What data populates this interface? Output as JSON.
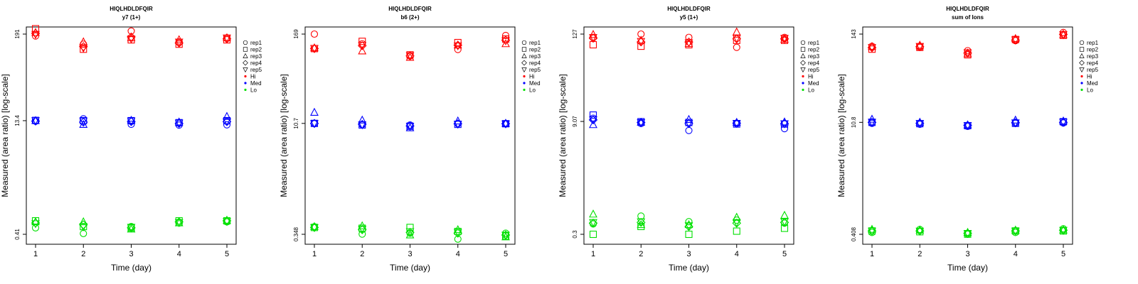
{
  "chart_data": [
    {
      "type": "scatter",
      "title": "HIQLHDLDFQIR",
      "subtitle": "y7 (1+)",
      "xlabel": "Time (day)",
      "ylabel": "Measured (area ratio) [log-scale]",
      "x_ticks": [
        "1",
        "2",
        "3",
        "4",
        "5"
      ],
      "y_ticks": [
        {
          "value": 0.41,
          "label": "0.41"
        },
        {
          "value": 13.4,
          "label": "13.4"
        },
        {
          "value": 191,
          "label": "191"
        }
      ],
      "log_y": true,
      "legend": [
        "rep1",
        "rep2",
        "rep3",
        "rep4",
        "rep5",
        "Hi",
        "Med",
        "Lo"
      ],
      "legend_position": "right",
      "grid": false,
      "points": {
        "Hi": {
          "rep1": [
            180,
            140,
            210,
            150,
            170
          ],
          "rep2": [
            225,
            120,
            160,
            140,
            160
          ],
          "rep3": [
            200,
            150,
            170,
            160,
            170
          ],
          "rep4": [
            195,
            130,
            175,
            145,
            165
          ],
          "rep5": [
            190,
            125,
            165,
            150,
            170
          ]
        },
        "Med": {
          "rep1": [
            13.2,
            14.2,
            12.0,
            11.7,
            11.8
          ],
          "rep2": [
            13.5,
            13.4,
            13.4,
            12.6,
            13.4
          ],
          "rep3": [
            13.4,
            11.9,
            13.5,
            12.8,
            15.2
          ],
          "rep4": [
            13.2,
            12.8,
            13.0,
            12.3,
            13.0
          ],
          "rep5": [
            13.5,
            13.3,
            13.3,
            12.5,
            13.2
          ]
        },
        "Lo": {
          "rep1": [
            0.5,
            0.42,
            0.52,
            0.58,
            0.6
          ],
          "rep2": [
            0.62,
            0.52,
            0.5,
            0.62,
            0.62
          ],
          "rep3": [
            0.6,
            0.6,
            0.48,
            0.58,
            0.63
          ],
          "rep4": [
            0.58,
            0.55,
            0.5,
            0.6,
            0.62
          ],
          "rep5": [
            0.57,
            0.52,
            0.51,
            0.59,
            0.61
          ]
        }
      }
    },
    {
      "type": "scatter",
      "title": "HIQLHDLDFQIR",
      "subtitle": "b6 (2+)",
      "xlabel": "Time (day)",
      "ylabel": "Measured (area ratio) [log-scale]",
      "x_ticks": [
        "1",
        "2",
        "3",
        "4",
        "5"
      ],
      "y_ticks": [
        {
          "value": 0.348,
          "label": "0.348"
        },
        {
          "value": 10.7,
          "label": "10.7"
        },
        {
          "value": 169,
          "label": "169"
        }
      ],
      "log_y": true,
      "legend": [
        "rep1",
        "rep2",
        "rep3",
        "rep4",
        "rep5",
        "Hi",
        "Med",
        "Lo"
      ],
      "legend_position": "right",
      "grid": false,
      "points": {
        "Hi": {
          "rep1": [
            169,
            125,
            86,
            105,
            162
          ],
          "rep2": [
            108,
            135,
            89,
            130,
            145
          ],
          "rep3": [
            110,
            100,
            82,
            120,
            125
          ],
          "rep4": [
            108,
            118,
            86,
            120,
            140
          ],
          "rep5": [
            109,
            120,
            87,
            118,
            138
          ]
        },
        "Med": {
          "rep1": [
            10.7,
            10.3,
            10.2,
            10.6,
            10.6
          ],
          "rep2": [
            10.7,
            10.2,
            9.8,
            10.4,
            10.6
          ],
          "rep3": [
            15.0,
            11.8,
            9.3,
            11.5,
            10.7
          ],
          "rep4": [
            10.7,
            10.4,
            9.9,
            10.6,
            10.6
          ],
          "rep5": [
            10.7,
            10.3,
            9.8,
            10.5,
            10.6
          ]
        },
        "Lo": {
          "rep1": [
            0.44,
            0.35,
            0.36,
            0.3,
            0.36
          ],
          "rep2": [
            0.43,
            0.42,
            0.43,
            0.38,
            0.33
          ],
          "rep3": [
            0.44,
            0.45,
            0.34,
            0.4,
            0.32
          ],
          "rep4": [
            0.43,
            0.4,
            0.37,
            0.36,
            0.34
          ],
          "rep5": [
            0.43,
            0.41,
            0.38,
            0.37,
            0.34
          ]
        }
      }
    },
    {
      "type": "scatter",
      "title": "HIQLHDLDFQIR",
      "subtitle": "y5 (1+)",
      "xlabel": "Time (day)",
      "ylabel": "Measured (area ratio) [log-scale]",
      "x_ticks": [
        "1",
        "2",
        "3",
        "4",
        "5"
      ],
      "y_ticks": [
        {
          "value": 0.3,
          "label": "0.3"
        },
        {
          "value": 9.07,
          "label": "9.07"
        },
        {
          "value": 127,
          "label": "127"
        }
      ],
      "log_y": true,
      "legend": [
        "rep1",
        "rep2",
        "rep3",
        "rep4",
        "rep5",
        "Hi",
        "Med",
        "Lo"
      ],
      "legend_position": "right",
      "grid": false,
      "points": {
        "Hi": {
          "rep1": [
            115,
            127,
            115,
            85,
            115
          ],
          "rep2": [
            92,
            88,
            92,
            105,
            105
          ],
          "rep3": [
            125,
            105,
            95,
            135,
            108
          ],
          "rep4": [
            112,
            100,
            100,
            110,
            110
          ],
          "rep5": [
            115,
            102,
            98,
            112,
            112
          ]
        },
        "Med": {
          "rep1": [
            10.0,
            8.5,
            6.9,
            8.5,
            7.3
          ],
          "rep2": [
            11.0,
            9.0,
            8.8,
            8.4,
            8.4
          ],
          "rep3": [
            8.2,
            8.8,
            9.6,
            8.8,
            8.9
          ],
          "rep4": [
            9.5,
            8.8,
            8.5,
            8.6,
            8.5
          ],
          "rep5": [
            9.6,
            8.8,
            8.6,
            8.6,
            8.5
          ]
        },
        "Lo": {
          "rep1": [
            0.41,
            0.52,
            0.44,
            0.46,
            0.42
          ],
          "rep2": [
            0.3,
            0.38,
            0.3,
            0.33,
            0.36
          ],
          "rep3": [
            0.55,
            0.4,
            0.4,
            0.5,
            0.53
          ],
          "rep4": [
            0.42,
            0.43,
            0.38,
            0.42,
            0.43
          ],
          "rep5": [
            0.43,
            0.44,
            0.39,
            0.43,
            0.44
          ]
        }
      }
    },
    {
      "type": "scatter",
      "title": "HIQLHDLDFQIR",
      "subtitle": "sum of Ions",
      "xlabel": "Time (day)",
      "ylabel": "Measured (area ratio) [log-scale]",
      "x_ticks": [
        "1",
        "2",
        "3",
        "4",
        "5"
      ],
      "y_ticks": [
        {
          "value": 0.408,
          "label": "0.408"
        },
        {
          "value": 10.8,
          "label": "10.8"
        },
        {
          "value": 143,
          "label": "143"
        }
      ],
      "log_y": true,
      "legend": [
        "rep1",
        "rep2",
        "rep3",
        "rep4",
        "rep5",
        "Hi",
        "Med",
        "Lo"
      ],
      "legend_position": "right",
      "grid": false,
      "points": {
        "Hi": {
          "rep1": [
            100,
            97,
            88,
            118,
            150
          ],
          "rep2": [
            92,
            97,
            78,
            122,
            138
          ],
          "rep3": [
            99,
            103,
            80,
            125,
            140
          ],
          "rep4": [
            96,
            99,
            82,
            120,
            142
          ],
          "rep5": [
            97,
            100,
            83,
            121,
            141
          ]
        },
        "Med": {
          "rep1": [
            10.5,
            10.2,
            9.6,
            10.5,
            10.6
          ],
          "rep2": [
            10.8,
            10.4,
            9.8,
            10.5,
            11.0
          ],
          "rep3": [
            11.8,
            10.8,
            10.0,
            11.5,
            11.2
          ],
          "rep4": [
            10.8,
            10.5,
            9.9,
            10.7,
            10.8
          ],
          "rep5": [
            10.9,
            10.5,
            9.9,
            10.7,
            10.9
          ]
        },
        "Lo": {
          "rep1": [
            0.43,
            0.47,
            0.41,
            0.43,
            0.48
          ],
          "rep2": [
            0.45,
            0.44,
            0.41,
            0.45,
            0.45
          ],
          "rep3": [
            0.47,
            0.46,
            0.43,
            0.46,
            0.46
          ],
          "rep4": [
            0.45,
            0.45,
            0.42,
            0.45,
            0.46
          ],
          "rep5": [
            0.45,
            0.45,
            0.42,
            0.45,
            0.46
          ]
        }
      }
    }
  ],
  "colors": {
    "Hi": "#ff0000",
    "Med": "#0000ff",
    "Lo": "#00e000"
  },
  "rep_markers": {
    "rep1": "circle",
    "rep2": "square",
    "rep3": "triangle-up",
    "rep4": "diamond",
    "rep5": "triangle-down"
  }
}
